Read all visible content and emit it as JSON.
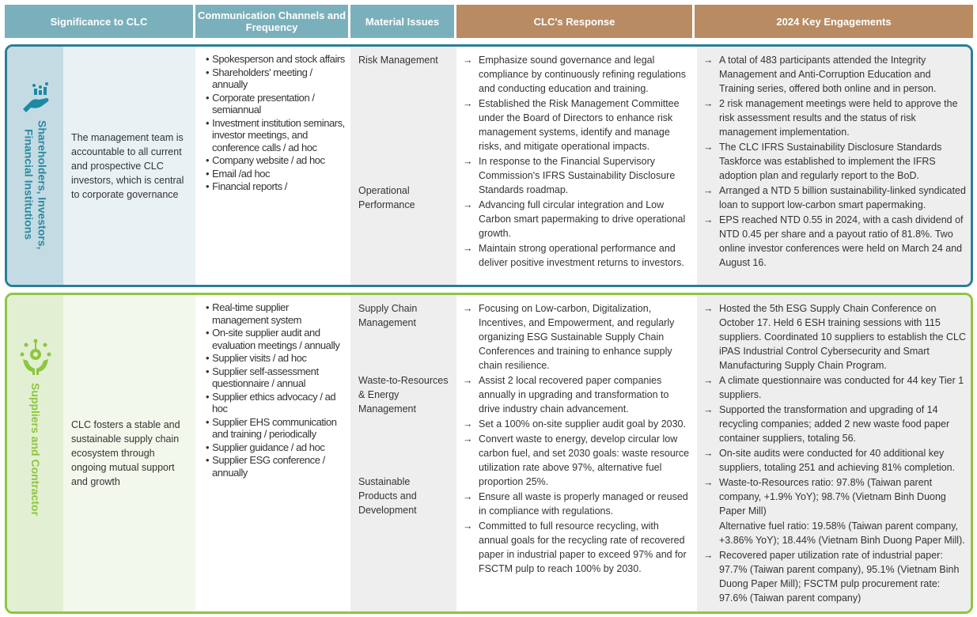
{
  "header": {
    "col1": "Significance to CLC",
    "col2": "Communication Channels and Frequency",
    "col3": "Material Issues",
    "col4": "CLC's Response",
    "col5": "2024 Key Engagements"
  },
  "colors": {
    "header_teal": "#7ab0bb",
    "header_brown": "#b98b63",
    "row1_border": "#2a7f95",
    "row2_border": "#8dc63f"
  },
  "rows": [
    {
      "stakeholder_line1": "Shareholders, Investors,",
      "stakeholder_line2": "Financial Institutions",
      "icon": "hand-chart-icon",
      "significance": "The management team is accountable to all current and prospective CLC investors, which is central to corporate governance",
      "channels": [
        "Spokesperson and stock affairs",
        "Shareholders' meeting / annually",
        "Corporate presentation / semiannual",
        "Investment institution seminars, investor meetings, and conference calls / ad hoc",
        "Company website / ad hoc",
        "Email /ad hoc",
        "Financial reports /"
      ],
      "issues": [
        "Risk Management",
        "Operational Performance"
      ],
      "response": [
        "Emphasize sound governance and legal compliance by continuously refining regulations and conducting education and training.",
        "Established the Risk Management Committee under the Board of Directors to enhance risk management systems, identify and manage risks, and mitigate operational impacts.",
        "In response to the Financial Supervisory Commission's IFRS Sustainability Disclosure Standards roadmap.",
        "Advancing full circular integration and Low Carbon smart papermaking to drive operational growth.",
        "Maintain strong operational performance and deliver positive investment returns to investors."
      ],
      "engagements": [
        "A total of 483 participants attended the Integrity Management and Anti-Corruption Education and Training series, offered both online and in person.",
        "2 risk management meetings were held to approve the risk assessment results and the status of risk management implementation.",
        "The CLC IFRS Sustainability Disclosure Standards Taskforce was established to implement the IFRS adoption plan and regularly report to the BoD.",
        "Arranged a NTD 5 billion sustainability-linked syndicated loan to support low-carbon smart papermaking.",
        "EPS reached NTD 0.55 in 2024, with a cash dividend of NTD 0.45 per share and a payout ratio of 81.8%. Two online investor conferences were held on March 24 and August 16."
      ]
    },
    {
      "stakeholder_line1": "Suppliers and Contractor",
      "icon": "hands-gear-icon",
      "significance": "CLC fosters a stable and sustainable supply chain ecosystem through ongoing mutual support and growth",
      "channels": [
        "Real-time supplier management system",
        "On-site supplier audit and evaluation meetings / annually",
        "Supplier visits / ad hoc",
        "Supplier self-assessment questionnaire / annual",
        "Supplier ethics advocacy / ad hoc",
        "Supplier EHS communication and training / periodically",
        "Supplier guidance / ad hoc",
        "Supplier ESG conference / annually"
      ],
      "issues": [
        "Supply Chain Management",
        "Waste-to-Resources & Energy Management",
        "Sustainable Products and Development"
      ],
      "response": [
        "Focusing on Low-carbon, Digitalization, Incentives, and Empowerment, and regularly organizing ESG Sustainable Supply Chain Conferences and training to enhance supply chain resilience.",
        "Assist 2 local recovered paper companies annually in upgrading and transformation to drive industry chain advancement.",
        "Set a 100% on-site supplier audit goal by 2030.",
        "Convert waste to energy, develop circular low carbon fuel, and set 2030 goals: waste resource utilization rate above 97%, alternative fuel proportion 25%.",
        "Ensure all waste is properly managed or reused in compliance with regulations.",
        "Committed to full resource recycling, with annual goals for the recycling rate of recovered paper in industrial paper to exceed 97% and for FSCTM pulp to reach 100% by 2030."
      ],
      "engagements": [
        "Hosted the 5th ESG Supply Chain Conference on October 17. Held 6 ESH training sessions with 115 suppliers. Coordinated 10 suppliers to establish the CLC iPAS Industrial Control Cybersecurity and Smart Manufacturing Supply Chain Program.",
        "A climate questionnaire was conducted for 44 key Tier 1 suppliers.",
        "Supported the transformation and upgrading of 14 recycling companies; added 2 new waste food paper container suppliers, totaling 56.",
        "On-site audits were conducted for 40 additional key suppliers, totaling 251 and achieving 81% completion.",
        "Waste-to-Resources ratio: 97.8% (Taiwan parent company, +1.9% YoY); 98.7% (Vietnam Binh Duong Paper Mill)",
        "Alternative fuel ratio: 19.58% (Taiwan parent company, +3.86% YoY); 18.44% (Vietnam Binh Duong Paper Mill).",
        "Recovered paper utilization rate of industrial paper: 97.7% (Taiwan parent company), 95.1% (Vietnam Binh Duong Paper Mill); FSCTM pulp procurement rate: 97.6% (Taiwan parent company)"
      ]
    }
  ]
}
